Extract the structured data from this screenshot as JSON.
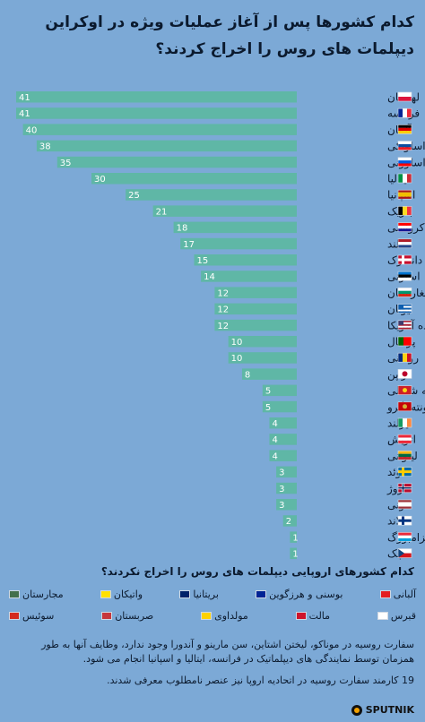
{
  "title": "کدام کشورها پس از آغاز عملیات ویژه در اوکراین دیپلمات های روس را اخراج کردند؟",
  "colors": {
    "background": "#7ca9d6",
    "bar": "#5fb7a6",
    "bar_text": "#ffffff"
  },
  "chart_data": {
    "type": "bar",
    "orientation": "horizontal",
    "categories": [
      "لهستان",
      "فرانسه",
      "آلمان",
      "اسلواکی",
      "اسلوونی",
      "ایتالیا",
      "اسپانیا",
      "بلژیک",
      "کرواسی",
      "هلند",
      "دانمارک",
      "استونی",
      "بلغارستان",
      "یونان",
      "ایالات متحده آمریکا",
      "پرتغال",
      "رومانی",
      "ژاپن",
      "مقدونیه شمالی",
      "مونته نگرو",
      "ایرلند",
      "اتریش",
      "لیتوانی",
      "سوئد",
      "نروژ",
      "لتونی",
      "فنلاند",
      "لوکزامبورگ",
      "چک"
    ],
    "values": [
      41,
      41,
      40,
      38,
      35,
      30,
      25,
      21,
      18,
      17,
      15,
      14,
      12,
      12,
      12,
      10,
      10,
      8,
      5,
      5,
      4,
      4,
      4,
      3,
      3,
      3,
      2,
      1,
      1
    ],
    "xlim": [
      0,
      41
    ],
    "grid": false,
    "title": "کدام کشورها پس از آغاز عملیات ویژه در اوکراین دیپلمات های روس را اخراج کردند؟",
    "xlabel": "",
    "ylabel": ""
  },
  "flags": [
    {
      "type": "h",
      "c": [
        "#ffffff",
        "#dc143c"
      ]
    },
    {
      "type": "v",
      "c": [
        "#002395",
        "#ffffff",
        "#ed2939"
      ]
    },
    {
      "type": "h",
      "c": [
        "#000000",
        "#dd0000",
        "#ffce00"
      ]
    },
    {
      "type": "h",
      "c": [
        "#ffffff",
        "#0b4ea2",
        "#ee1c25"
      ]
    },
    {
      "type": "h",
      "c": [
        "#ffffff",
        "#005ce5",
        "#ff0000"
      ]
    },
    {
      "type": "v",
      "c": [
        "#009246",
        "#ffffff",
        "#ce2b37"
      ]
    },
    {
      "type": "h3",
      "c": [
        "#aa151b",
        "#f1bf00",
        "#aa151b"
      ]
    },
    {
      "type": "v",
      "c": [
        "#000000",
        "#fdda24",
        "#ef3340"
      ]
    },
    {
      "type": "h",
      "c": [
        "#ff0000",
        "#ffffff",
        "#171796"
      ]
    },
    {
      "type": "h",
      "c": [
        "#ae1c28",
        "#ffffff",
        "#21468b"
      ]
    },
    {
      "type": "cross",
      "c": [
        "#c8102e",
        "#ffffff"
      ]
    },
    {
      "type": "h",
      "c": [
        "#0072ce",
        "#000000",
        "#ffffff"
      ]
    },
    {
      "type": "h",
      "c": [
        "#ffffff",
        "#00966e",
        "#d62612"
      ]
    },
    {
      "type": "stripes",
      "c": [
        "#0d5eaf",
        "#ffffff"
      ]
    },
    {
      "type": "us",
      "c": [
        "#b22234",
        "#ffffff",
        "#3c3b6e"
      ]
    },
    {
      "type": "v2",
      "c": [
        "#006600",
        "#ff0000"
      ]
    },
    {
      "type": "v",
      "c": [
        "#002b7f",
        "#fcd116",
        "#ce1126"
      ]
    },
    {
      "type": "jp",
      "c": [
        "#ffffff",
        "#bc002d"
      ]
    },
    {
      "type": "solid",
      "c": [
        "#ce2028",
        "#f9d616"
      ]
    },
    {
      "type": "solid",
      "c": [
        "#c40308",
        "#d4af37"
      ]
    },
    {
      "type": "v",
      "c": [
        "#169b62",
        "#ffffff",
        "#ff883e"
      ]
    },
    {
      "type": "h",
      "c": [
        "#ed2939",
        "#ffffff",
        "#ed2939"
      ]
    },
    {
      "type": "h",
      "c": [
        "#fdb913",
        "#006a44",
        "#c1272d"
      ]
    },
    {
      "type": "cross",
      "c": [
        "#006aa7",
        "#fecc00"
      ]
    },
    {
      "type": "cross2",
      "c": [
        "#ba0c2f",
        "#ffffff",
        "#00205b"
      ]
    },
    {
      "type": "h3",
      "c": [
        "#9e3039",
        "#ffffff",
        "#9e3039"
      ]
    },
    {
      "type": "cross",
      "c": [
        "#ffffff",
        "#003580"
      ]
    },
    {
      "type": "h",
      "c": [
        "#ed2939",
        "#ffffff",
        "#00a1de"
      ]
    },
    {
      "type": "cz",
      "c": [
        "#ffffff",
        "#d7141a",
        "#11457e"
      ]
    }
  ],
  "legend": {
    "title": "کدام کشورهای اروپایی دیپلمات های روس را اخراج نکردند؟",
    "row1": [
      {
        "label": "آلبانی",
        "color": "#e41e20"
      },
      {
        "label": "بوسنی و هرزگوین",
        "color": "#002395"
      },
      {
        "label": "بریتانیا",
        "color": "#012169"
      },
      {
        "label": "واتیکان",
        "color": "#ffe000"
      },
      {
        "label": "مجارستان",
        "color": "#436f4d"
      }
    ],
    "row2": [
      {
        "label": "قبرس",
        "color": "#ffffff"
      },
      {
        "label": "مالت",
        "color": "#cf142b"
      },
      {
        "label": "مولداوی",
        "color": "#ffd200"
      },
      {
        "label": "صربستان",
        "color": "#c6363c"
      },
      {
        "label": "سوئیس",
        "color": "#d52b1e"
      }
    ]
  },
  "notes": {
    "para1": "سفارت روسیه در موناکو، لیختن اشتاین، سن مارینو و آندورا وجود ندارد، وظایف آنها به طور همزمان توسط نمایندگی های دیپلماتیک در فرانسه، ایتالیا و اسپانیا انجام می شود.",
    "para2": "19 کارمند سفارت روسیه در اتحادیه اروپا نیز عنصر نامطلوب معرفی شدند."
  },
  "brand": {
    "name": "SPUTNIK"
  }
}
